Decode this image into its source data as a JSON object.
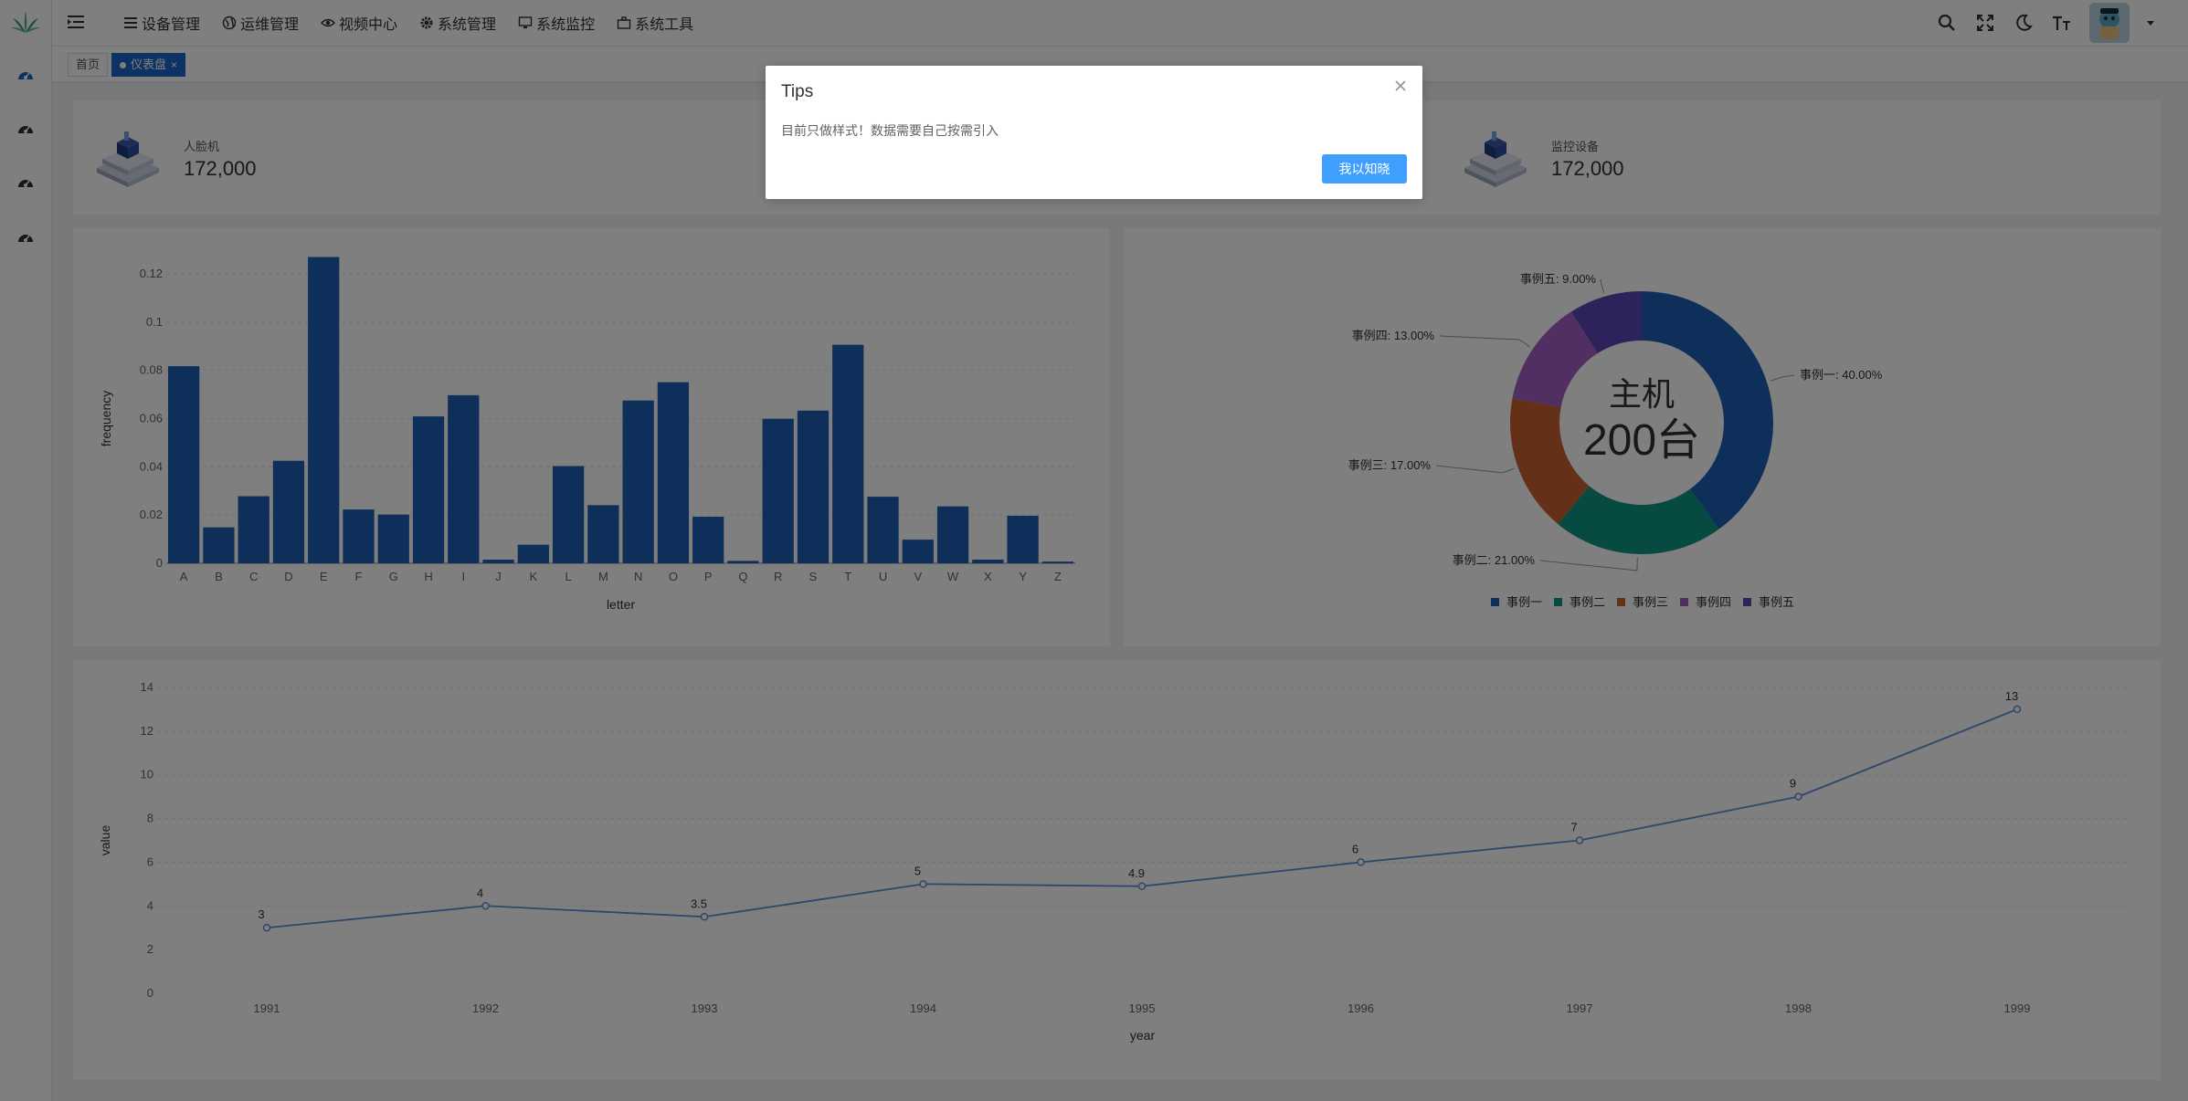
{
  "header": {
    "nav": [
      {
        "label": "设备管理",
        "icon": "list-icon"
      },
      {
        "label": "运维管理",
        "icon": "globe-icon"
      },
      {
        "label": "视频中心",
        "icon": "eye-icon"
      },
      {
        "label": "系统管理",
        "icon": "gear-icon"
      },
      {
        "label": "系统监控",
        "icon": "monitor-icon"
      },
      {
        "label": "系统工具",
        "icon": "toolbox-icon"
      }
    ],
    "tools": [
      "search-icon",
      "fullscreen-icon",
      "moon-icon",
      "font-size-icon"
    ]
  },
  "sidebar": {
    "items": [
      "dashboard-icon",
      "dashboard-icon",
      "dashboard-icon",
      "dashboard-icon"
    ]
  },
  "tags": {
    "home": "首页",
    "active": "仪表盘",
    "close": "×"
  },
  "stats": [
    {
      "title": "人脸机",
      "value": "172,000"
    },
    {
      "title": "监控设备",
      "value": "172,000"
    }
  ],
  "colors": {
    "bar": "#1a5fb4",
    "line": "#5b8fd6",
    "primary": "#409eff"
  },
  "chart_data": [
    {
      "type": "bar",
      "xlabel": "letter",
      "ylabel": "frequency",
      "ylim": [
        0,
        0.12
      ],
      "yticks": [
        "0",
        "0.02",
        "0.04",
        "0.06",
        "0.08",
        "0.1",
        "0.12"
      ],
      "categories": [
        "A",
        "B",
        "C",
        "D",
        "E",
        "F",
        "G",
        "H",
        "I",
        "J",
        "K",
        "L",
        "M",
        "N",
        "O",
        "P",
        "Q",
        "R",
        "S",
        "T",
        "U",
        "V",
        "W",
        "X",
        "Y",
        "Z"
      ],
      "values": [
        0.0817,
        0.0149,
        0.0278,
        0.0425,
        0.127,
        0.0223,
        0.0202,
        0.0609,
        0.0697,
        0.0015,
        0.0077,
        0.0403,
        0.0241,
        0.0675,
        0.0751,
        0.0193,
        0.001,
        0.0599,
        0.0633,
        0.0906,
        0.0276,
        0.0098,
        0.0236,
        0.0015,
        0.0197,
        0.0007
      ]
    },
    {
      "type": "pie",
      "center_label": "主机",
      "center_value": "200台",
      "slices": [
        {
          "name": "事例一",
          "value": 40,
          "label": "事例一: 40.00%",
          "color": "#1a5fb4"
        },
        {
          "name": "事例二",
          "value": 21,
          "label": "事例二: 21.00%",
          "color": "#0e9482"
        },
        {
          "name": "事例三",
          "value": 17,
          "label": "事例三: 17.00%",
          "color": "#c9602e"
        },
        {
          "name": "事例四",
          "value": 13,
          "label": "事例四: 13.00%",
          "color": "#a45fc4"
        },
        {
          "name": "事例五",
          "value": 9,
          "label": "事例五: 9.00%",
          "color": "#5a46b5"
        }
      ],
      "legend": "bottom"
    },
    {
      "type": "line",
      "xlabel": "year",
      "ylabel": "value",
      "ylim": [
        0,
        14
      ],
      "yticks": [
        "0",
        "2",
        "4",
        "6",
        "8",
        "10",
        "12",
        "14"
      ],
      "x": [
        "1991",
        "1992",
        "1993",
        "1994",
        "1995",
        "1996",
        "1997",
        "1998",
        "1999"
      ],
      "values": [
        3,
        4,
        3.5,
        5,
        4.9,
        6,
        7,
        9,
        13
      ],
      "labels": [
        "3",
        "4",
        "3.5",
        "5",
        "4.9",
        "6",
        "7",
        "9",
        "13"
      ]
    }
  ],
  "dialog": {
    "title": "Tips",
    "message": "目前只做样式！数据需要自己按需引入",
    "button": "我以知晓"
  }
}
